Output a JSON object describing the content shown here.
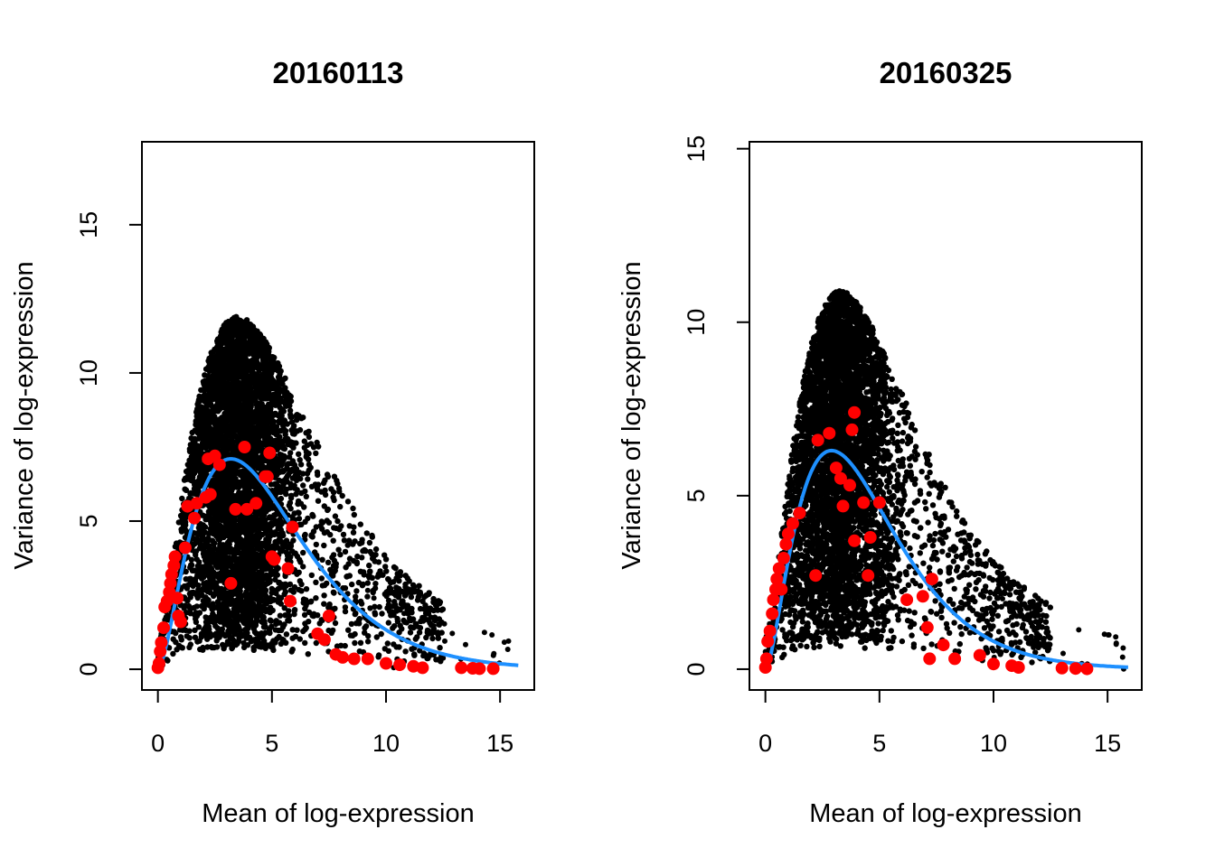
{
  "chart_data": [
    {
      "type": "scatter",
      "title": "20160113",
      "xlabel": "Mean of log-expression",
      "ylabel": "Variance of log-expression",
      "xlim": [
        -0.7,
        16.5
      ],
      "ylim": [
        -0.7,
        17.8
      ],
      "xticks": [
        0,
        5,
        10,
        15
      ],
      "yticks": [
        0,
        5,
        10,
        15
      ],
      "cloud_peak_mean": 3.5,
      "cloud_peak_variance": 11.0,
      "spike_points": [
        [
          0.0,
          0.05
        ],
        [
          0.05,
          0.2
        ],
        [
          0.1,
          0.6
        ],
        [
          0.15,
          0.9
        ],
        [
          0.25,
          1.4
        ],
        [
          0.3,
          2.1
        ],
        [
          0.4,
          2.3
        ],
        [
          0.5,
          2.6
        ],
        [
          0.55,
          2.9
        ],
        [
          0.6,
          3.2
        ],
        [
          0.7,
          3.5
        ],
        [
          0.75,
          3.8
        ],
        [
          0.85,
          2.4
        ],
        [
          0.9,
          1.8
        ],
        [
          1.0,
          1.6
        ],
        [
          1.2,
          4.1
        ],
        [
          1.3,
          5.5
        ],
        [
          1.6,
          5.1
        ],
        [
          1.7,
          5.6
        ],
        [
          2.1,
          5.8
        ],
        [
          2.2,
          7.1
        ],
        [
          2.3,
          5.9
        ],
        [
          2.5,
          7.2
        ],
        [
          2.7,
          6.9
        ],
        [
          3.2,
          2.9
        ],
        [
          3.4,
          5.4
        ],
        [
          3.8,
          7.5
        ],
        [
          3.9,
          5.4
        ],
        [
          4.3,
          5.6
        ],
        [
          4.7,
          6.5
        ],
        [
          4.8,
          6.5
        ],
        [
          4.9,
          7.3
        ],
        [
          5.0,
          3.8
        ],
        [
          5.1,
          3.7
        ],
        [
          5.7,
          3.4
        ],
        [
          5.8,
          2.3
        ],
        [
          5.9,
          4.8
        ],
        [
          7.0,
          1.2
        ],
        [
          7.3,
          1.0
        ],
        [
          7.5,
          1.8
        ],
        [
          7.8,
          0.5
        ],
        [
          8.1,
          0.4
        ],
        [
          8.6,
          0.35
        ],
        [
          9.2,
          0.35
        ],
        [
          10.0,
          0.2
        ],
        [
          10.6,
          0.15
        ],
        [
          11.2,
          0.1
        ],
        [
          11.6,
          0.05
        ],
        [
          13.3,
          0.05
        ],
        [
          13.8,
          0.03
        ],
        [
          14.1,
          0.02
        ],
        [
          14.7,
          0.02
        ]
      ],
      "trend": {
        "type": "line",
        "peak_mean": 3.2,
        "peak_variance": 7.1,
        "x_range": [
          0,
          15.8
        ]
      },
      "colors": {
        "genes": "#000000",
        "spikes": "#ff0000",
        "trend": "#1e90ff"
      },
      "grid": false
    },
    {
      "type": "scatter",
      "title": "20160325",
      "xlabel": "Mean of log-expression",
      "ylabel": "Variance of log-expression",
      "xlim": [
        -0.7,
        16.5
      ],
      "ylim": [
        -0.6,
        15.2
      ],
      "xticks": [
        0,
        5,
        10,
        15
      ],
      "yticks": [
        0,
        5,
        10,
        15
      ],
      "cloud_peak_mean": 3.3,
      "cloud_peak_variance": 10.0,
      "spike_points": [
        [
          0.0,
          0.05
        ],
        [
          0.05,
          0.3
        ],
        [
          0.1,
          0.8
        ],
        [
          0.2,
          1.1
        ],
        [
          0.3,
          1.6
        ],
        [
          0.35,
          2.0
        ],
        [
          0.45,
          2.3
        ],
        [
          0.5,
          2.6
        ],
        [
          0.6,
          2.9
        ],
        [
          0.7,
          2.3
        ],
        [
          0.8,
          3.2
        ],
        [
          0.9,
          3.6
        ],
        [
          1.0,
          3.9
        ],
        [
          1.2,
          4.2
        ],
        [
          1.5,
          4.5
        ],
        [
          2.2,
          2.7
        ],
        [
          2.3,
          6.6
        ],
        [
          2.8,
          6.8
        ],
        [
          3.1,
          5.8
        ],
        [
          3.3,
          5.5
        ],
        [
          3.4,
          4.7
        ],
        [
          3.7,
          5.3
        ],
        [
          3.8,
          6.9
        ],
        [
          3.9,
          7.4
        ],
        [
          3.9,
          3.7
        ],
        [
          4.3,
          4.8
        ],
        [
          4.5,
          2.7
        ],
        [
          4.6,
          3.8
        ],
        [
          5.0,
          4.8
        ],
        [
          6.2,
          2.0
        ],
        [
          6.9,
          2.1
        ],
        [
          7.1,
          1.2
        ],
        [
          7.2,
          0.3
        ],
        [
          7.3,
          2.6
        ],
        [
          7.8,
          0.7
        ],
        [
          8.3,
          0.3
        ],
        [
          9.4,
          0.4
        ],
        [
          10.0,
          0.15
        ],
        [
          10.8,
          0.1
        ],
        [
          11.1,
          0.05
        ],
        [
          13.0,
          0.03
        ],
        [
          13.6,
          0.02
        ],
        [
          14.1,
          0.01
        ]
      ],
      "trend": {
        "type": "line",
        "peak_mean": 2.9,
        "peak_variance": 6.3,
        "x_range": [
          0,
          15.9
        ]
      },
      "colors": {
        "genes": "#000000",
        "spikes": "#ff0000",
        "trend": "#1e90ff"
      },
      "grid": false
    }
  ]
}
